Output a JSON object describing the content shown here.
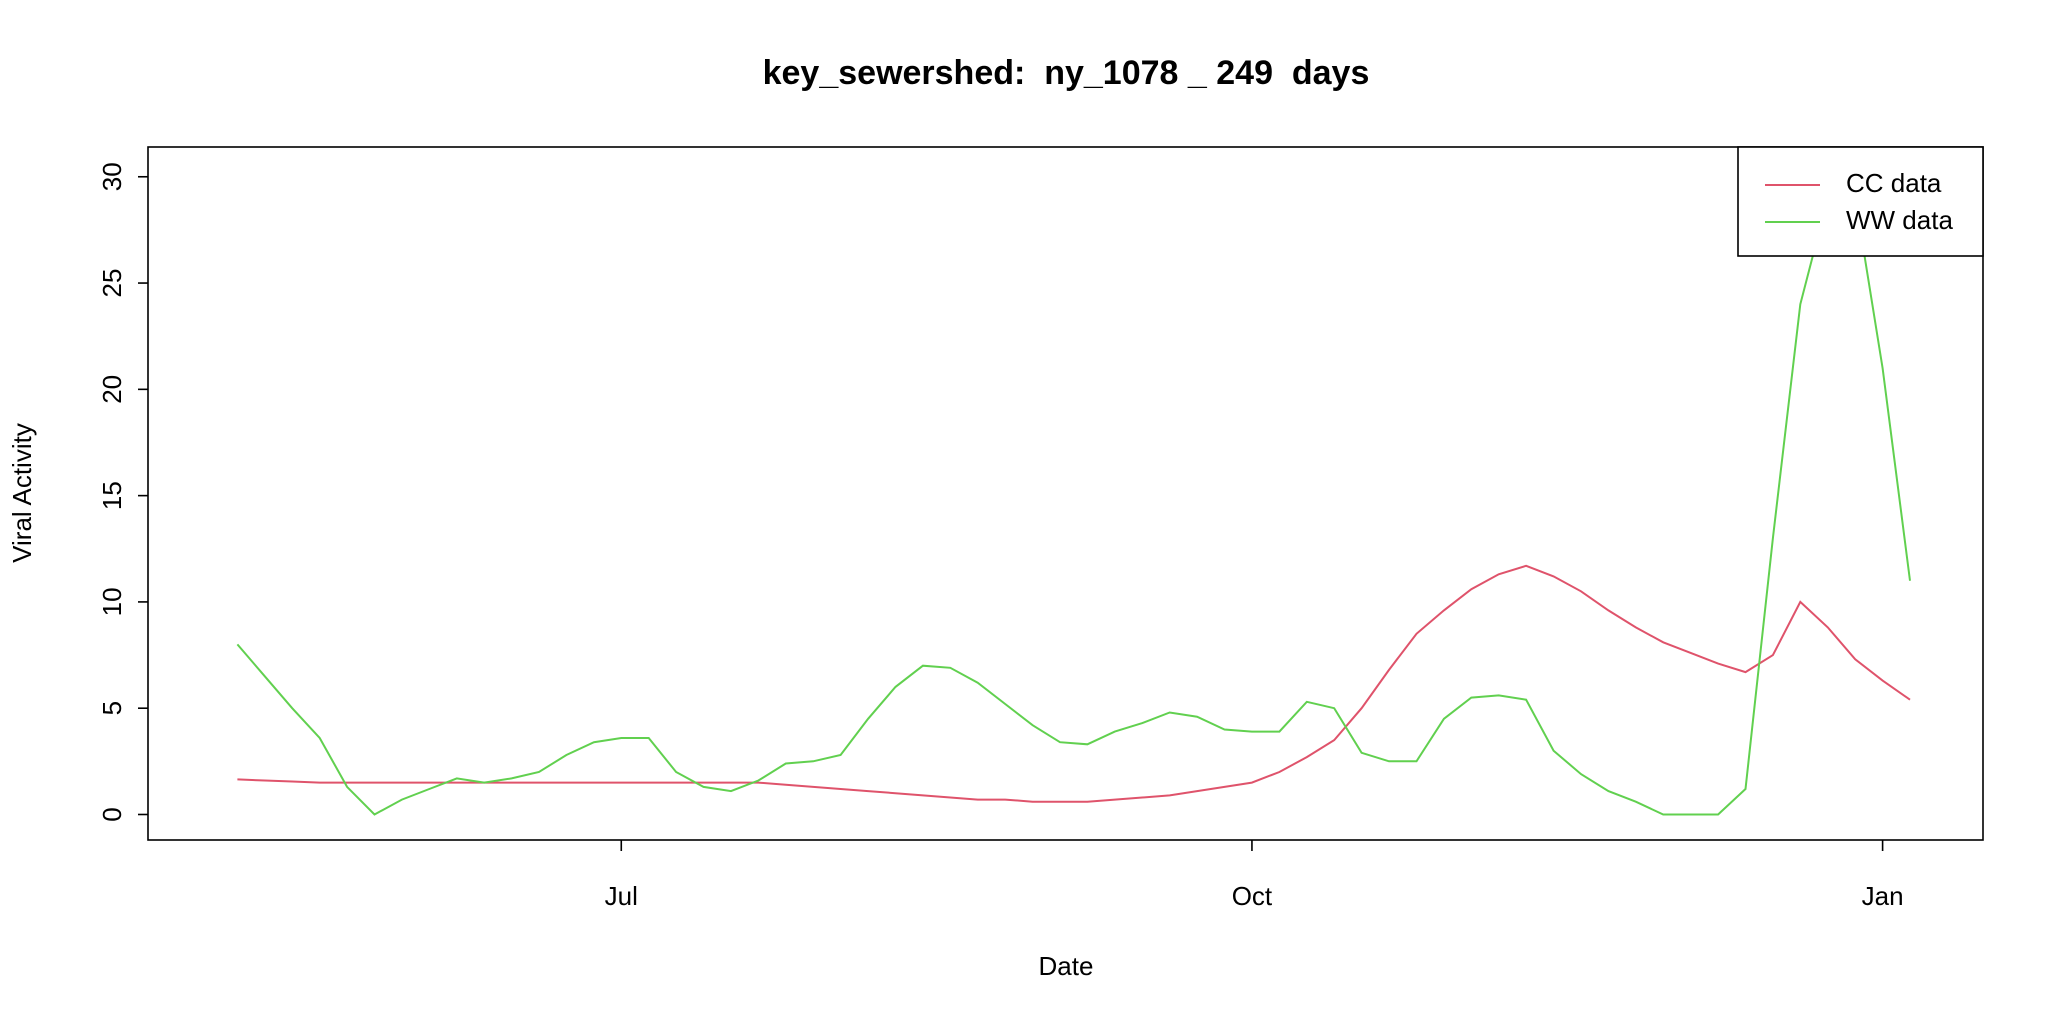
{
  "chart_data": {
    "type": "line",
    "title": "key_sewershed:  ny_1078 _ 249  days",
    "x_label": "Date",
    "y_label": "Viral Activity",
    "categories": [
      null,
      null,
      null,
      null,
      null,
      null,
      null,
      null,
      null,
      null,
      null,
      null,
      null,
      null,
      "Jul",
      null,
      null,
      null,
      null,
      null,
      null,
      null,
      null,
      null,
      null,
      null,
      null,
      null,
      null,
      null,
      null,
      null,
      null,
      null,
      null,
      null,
      null,
      "Oct",
      null,
      null,
      null,
      null,
      null,
      null,
      null,
      null,
      null,
      null,
      null,
      null,
      null,
      null,
      null,
      null,
      null,
      null,
      null,
      null,
      null,
      null,
      "Jan",
      null
    ],
    "series": [
      {
        "name": "CC data",
        "color": "#DF536B",
        "values": [
          1.65,
          1.6,
          1.55,
          1.5,
          1.5,
          1.5,
          1.5,
          1.5,
          1.5,
          1.5,
          1.5,
          1.5,
          1.5,
          1.5,
          1.5,
          1.5,
          1.5,
          1.5,
          1.5,
          1.5,
          1.4,
          1.3,
          1.2,
          1.1,
          1.0,
          0.9,
          0.8,
          0.7,
          0.7,
          0.6,
          0.6,
          0.6,
          0.7,
          0.8,
          0.9,
          1.1,
          1.3,
          1.5,
          2.0,
          2.7,
          3.5,
          5.0,
          6.8,
          8.5,
          9.6,
          10.6,
          11.3,
          11.7,
          11.2,
          10.5,
          9.6,
          8.8,
          8.1,
          7.6,
          7.1,
          6.7,
          7.5,
          10.0,
          8.8,
          7.3,
          6.3,
          5.4
        ]
      },
      {
        "name": "WW data",
        "color": "#61D04F",
        "values": [
          8.0,
          6.5,
          5.0,
          3.6,
          1.3,
          0,
          0.7,
          1.2,
          1.7,
          1.5,
          1.7,
          2.0,
          2.8,
          3.4,
          3.6,
          3.6,
          2.0,
          1.3,
          1.1,
          1.6,
          2.4,
          2.5,
          2.8,
          4.5,
          6.0,
          7.0,
          6.9,
          6.2,
          5.2,
          4.2,
          3.4,
          3.3,
          3.9,
          4.3,
          4.8,
          4.6,
          4.0,
          3.9,
          3.9,
          5.3,
          5.0,
          2.9,
          2.5,
          2.5,
          4.5,
          5.5,
          5.6,
          5.4,
          3.0,
          1.9,
          1.1,
          0.6,
          0,
          0,
          0,
          1.2,
          13,
          24,
          29,
          29,
          21,
          11
        ]
      }
    ],
    "ylim": [
      -1.2,
      31.4
    ],
    "yticks": [
      0,
      5,
      10,
      15,
      20,
      25,
      30
    ],
    "legend": "top-right"
  }
}
